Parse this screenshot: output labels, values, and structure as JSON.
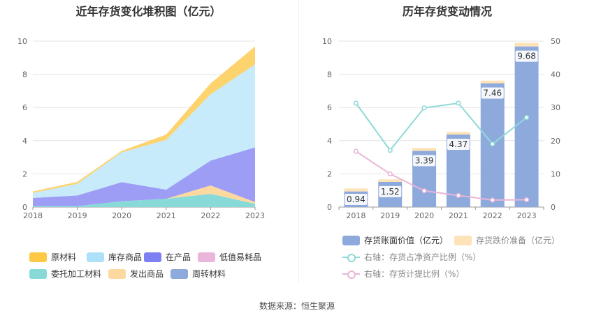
{
  "titles": {
    "left": "近年存货变化堆积图（亿元）",
    "right": "历年存货变动情况"
  },
  "source": "数据来源：恒生聚源",
  "chart_data": [
    {
      "type": "area",
      "stacked": true,
      "title": "近年存货变化堆积图（亿元）",
      "x": [
        "2018",
        "2019",
        "2020",
        "2021",
        "2022",
        "2023"
      ],
      "ylim": [
        0,
        10
      ],
      "yticks": [
        0,
        2,
        4,
        6,
        8,
        10
      ],
      "grid": true,
      "legend_position": "bottom",
      "series": [
        {
          "name": "委托加工材料",
          "color": "#88dad8",
          "values": [
            0.05,
            0.06,
            0.35,
            0.5,
            0.8,
            0.2
          ]
        },
        {
          "name": "发出商品",
          "color": "#fdd9a0",
          "values": [
            0.0,
            0.0,
            0.0,
            0.0,
            0.5,
            0.1
          ]
        },
        {
          "name": "周转材料",
          "color": "#8eaadc",
          "values": [
            0.0,
            0.0,
            0.0,
            0.0,
            0.0,
            0.0
          ]
        },
        {
          "name": "低值易耗品",
          "color": "#e9b5d8",
          "values": [
            0.0,
            0.0,
            0.0,
            0.0,
            0.0,
            0.0
          ]
        },
        {
          "name": "在产品",
          "color": "#9d9df5",
          "values": [
            0.5,
            0.64,
            1.15,
            0.55,
            1.5,
            3.3
          ]
        },
        {
          "name": "库存商品",
          "color": "#c7ebfa",
          "values": [
            0.3,
            0.7,
            1.8,
            3.0,
            4.0,
            5.0
          ]
        },
        {
          "name": "原材料",
          "color": "#fdd36e",
          "values": [
            0.09,
            0.12,
            0.09,
            0.32,
            0.66,
            1.08
          ]
        }
      ],
      "legend": [
        {
          "name": "原材料",
          "color": "#fec846"
        },
        {
          "name": "库存商品",
          "color": "#ade1f9"
        },
        {
          "name": "在产品",
          "color": "#7e7ff3"
        },
        {
          "name": "低值易耗品",
          "color": "#e9b5d8"
        },
        {
          "name": "委托加工材料",
          "color": "#88dad8"
        },
        {
          "name": "发出商品",
          "color": "#fdd9a0"
        },
        {
          "name": "周转材料",
          "color": "#8eaadc"
        }
      ]
    },
    {
      "type": "bar",
      "title": "历年存货变动情况",
      "categories": [
        "2018",
        "2019",
        "2020",
        "2021",
        "2022",
        "2023"
      ],
      "ylim": [
        0,
        10
      ],
      "yticks": [
        0,
        2,
        4,
        6,
        8,
        10
      ],
      "y2lim": [
        0,
        50
      ],
      "y2ticks": [
        0,
        10,
        20,
        30,
        40,
        50
      ],
      "grid": true,
      "legend_position": "bottom",
      "series": [
        {
          "name": "存货账面价值（亿元）",
          "kind": "bar",
          "axis": "left",
          "color": "#8eaadc",
          "values": [
            0.94,
            1.52,
            3.39,
            4.37,
            7.46,
            9.68
          ],
          "labels": [
            "0.94",
            "1.52",
            "3.39",
            "4.37",
            "7.46",
            "9.68"
          ]
        },
        {
          "name": "存货跌价准备（亿元）",
          "kind": "bar",
          "axis": "left",
          "stacked_on": 0,
          "color": "#fde3b7",
          "values": [
            0.18,
            0.15,
            0.17,
            0.16,
            0.16,
            0.22
          ]
        },
        {
          "name": "右轴：存货占净资产比例（%）",
          "kind": "line",
          "axis": "right",
          "color": "#8fd9d9",
          "values": [
            31.3,
            17.1,
            29.9,
            31.3,
            19.0,
            27.0
          ]
        },
        {
          "name": "右轴：存货计提比例（%）",
          "kind": "line",
          "axis": "right",
          "color": "#e9b5d8",
          "values": [
            16.8,
            10.0,
            4.9,
            3.5,
            2.1,
            2.2
          ]
        }
      ]
    }
  ]
}
